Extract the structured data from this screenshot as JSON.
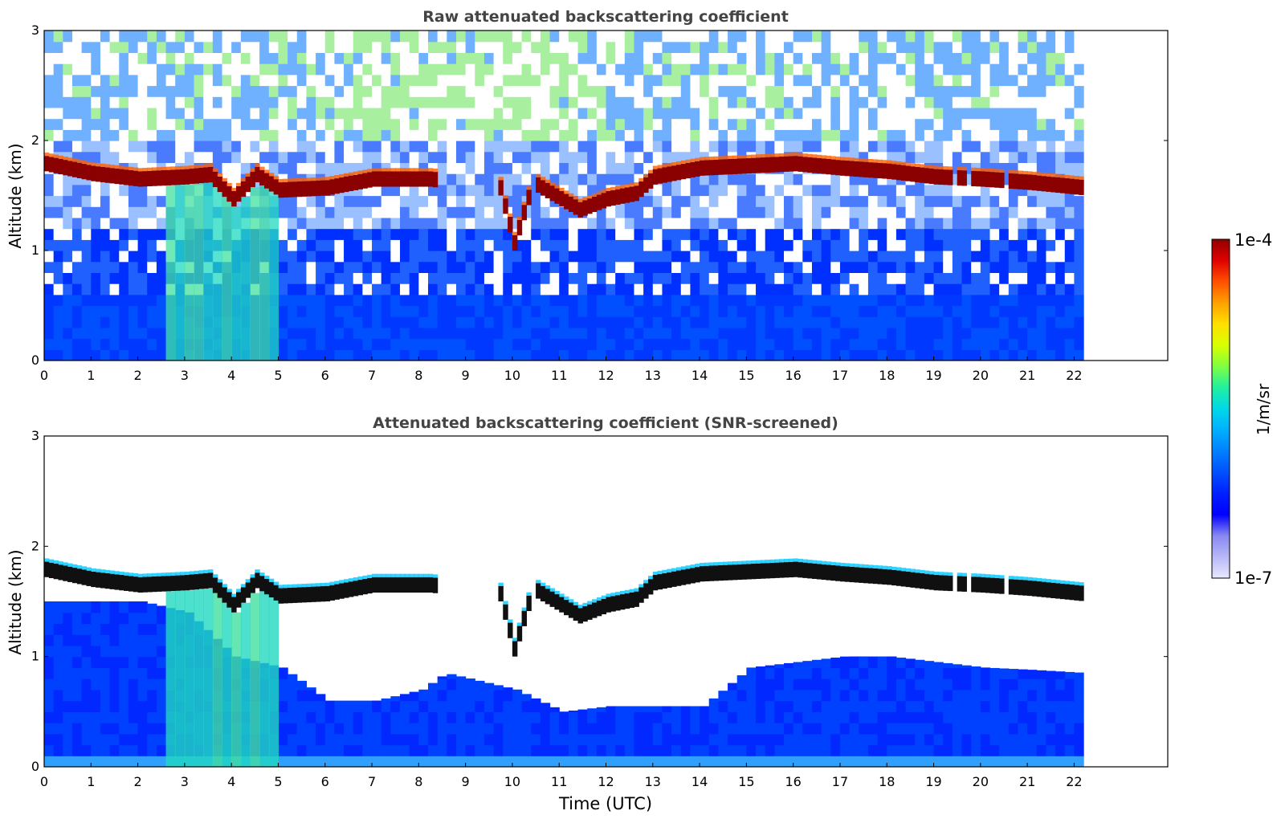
{
  "chart_data": [
    {
      "type": "heatmap",
      "title": "Raw attenuated backscattering coefficient",
      "xlabel": "",
      "ylabel": "Altitude (km)",
      "xlim": [
        0,
        24
      ],
      "ylim": [
        0,
        3
      ],
      "data_extent_x": [
        0,
        22.2
      ],
      "xticks": [
        0,
        1,
        2,
        3,
        4,
        5,
        6,
        7,
        8,
        9,
        10,
        11,
        12,
        13,
        14,
        15,
        16,
        17,
        18,
        19,
        20,
        21,
        22
      ],
      "yticks": [
        0,
        1,
        2,
        3
      ],
      "scale": "log",
      "screened": false,
      "cloud_layer_base_km": [
        [
          0,
          1.72
        ],
        [
          1,
          1.63
        ],
        [
          2,
          1.58
        ],
        [
          3,
          1.6
        ],
        [
          3.5,
          1.62
        ],
        [
          4,
          1.4
        ],
        [
          4.5,
          1.62
        ],
        [
          5,
          1.48
        ],
        [
          6,
          1.5
        ],
        [
          7,
          1.58
        ],
        [
          8.2,
          1.58
        ],
        [
          9.7,
          1.5
        ],
        [
          10,
          1.0
        ],
        [
          10.4,
          1.55
        ],
        [
          11,
          1.4
        ],
        [
          11.4,
          1.3
        ],
        [
          12,
          1.4
        ],
        [
          12.6,
          1.45
        ],
        [
          13,
          1.6
        ],
        [
          14,
          1.68
        ],
        [
          15,
          1.7
        ],
        [
          16,
          1.72
        ],
        [
          17,
          1.68
        ],
        [
          18,
          1.65
        ],
        [
          19,
          1.6
        ],
        [
          20,
          1.58
        ],
        [
          21,
          1.55
        ],
        [
          22.2,
          1.5
        ]
      ]
    },
    {
      "type": "heatmap",
      "title": "Attenuated backscattering coefficient (SNR-screened)",
      "xlabel": "Time (UTC)",
      "ylabel": "Altitude (km)",
      "xlim": [
        0,
        24
      ],
      "ylim": [
        0,
        3
      ],
      "data_extent_x": [
        0,
        22.2
      ],
      "xticks": [
        0,
        1,
        2,
        3,
        4,
        5,
        6,
        7,
        8,
        9,
        10,
        11,
        12,
        13,
        14,
        15,
        16,
        17,
        18,
        19,
        20,
        21,
        22
      ],
      "yticks": [
        0,
        1,
        2,
        3
      ],
      "scale": "log",
      "screened": true,
      "boundary_layer_top_km": [
        [
          0,
          1.5
        ],
        [
          2,
          1.5
        ],
        [
          3,
          1.4
        ],
        [
          4,
          1.0
        ],
        [
          5,
          0.9
        ],
        [
          6,
          0.6
        ],
        [
          7,
          0.6
        ],
        [
          8,
          0.7
        ],
        [
          8.5,
          0.85
        ],
        [
          9,
          0.8
        ],
        [
          10,
          0.7
        ],
        [
          11,
          0.5
        ],
        [
          12,
          0.55
        ],
        [
          13,
          0.55
        ],
        [
          14,
          0.55
        ],
        [
          15,
          0.9
        ],
        [
          16,
          0.95
        ],
        [
          17,
          1.0
        ],
        [
          18,
          1.0
        ],
        [
          19,
          0.95
        ],
        [
          20,
          0.9
        ],
        [
          21,
          0.88
        ],
        [
          22.2,
          0.85
        ]
      ]
    }
  ],
  "colorbar": {
    "label": "1/m/sr",
    "max_label": "1e-4",
    "min_label": "1e-7",
    "colors": [
      "#e8e8ff",
      "#b8b8f8",
      "#8888f0",
      "#0000ff",
      "#0020ff",
      "#0050ff",
      "#0080ff",
      "#00b0ff",
      "#00d8e8",
      "#20f0a0",
      "#80ff40",
      "#d8ff00",
      "#ffe000",
      "#ffa000",
      "#ff5000",
      "#e00000",
      "#900000"
    ]
  }
}
